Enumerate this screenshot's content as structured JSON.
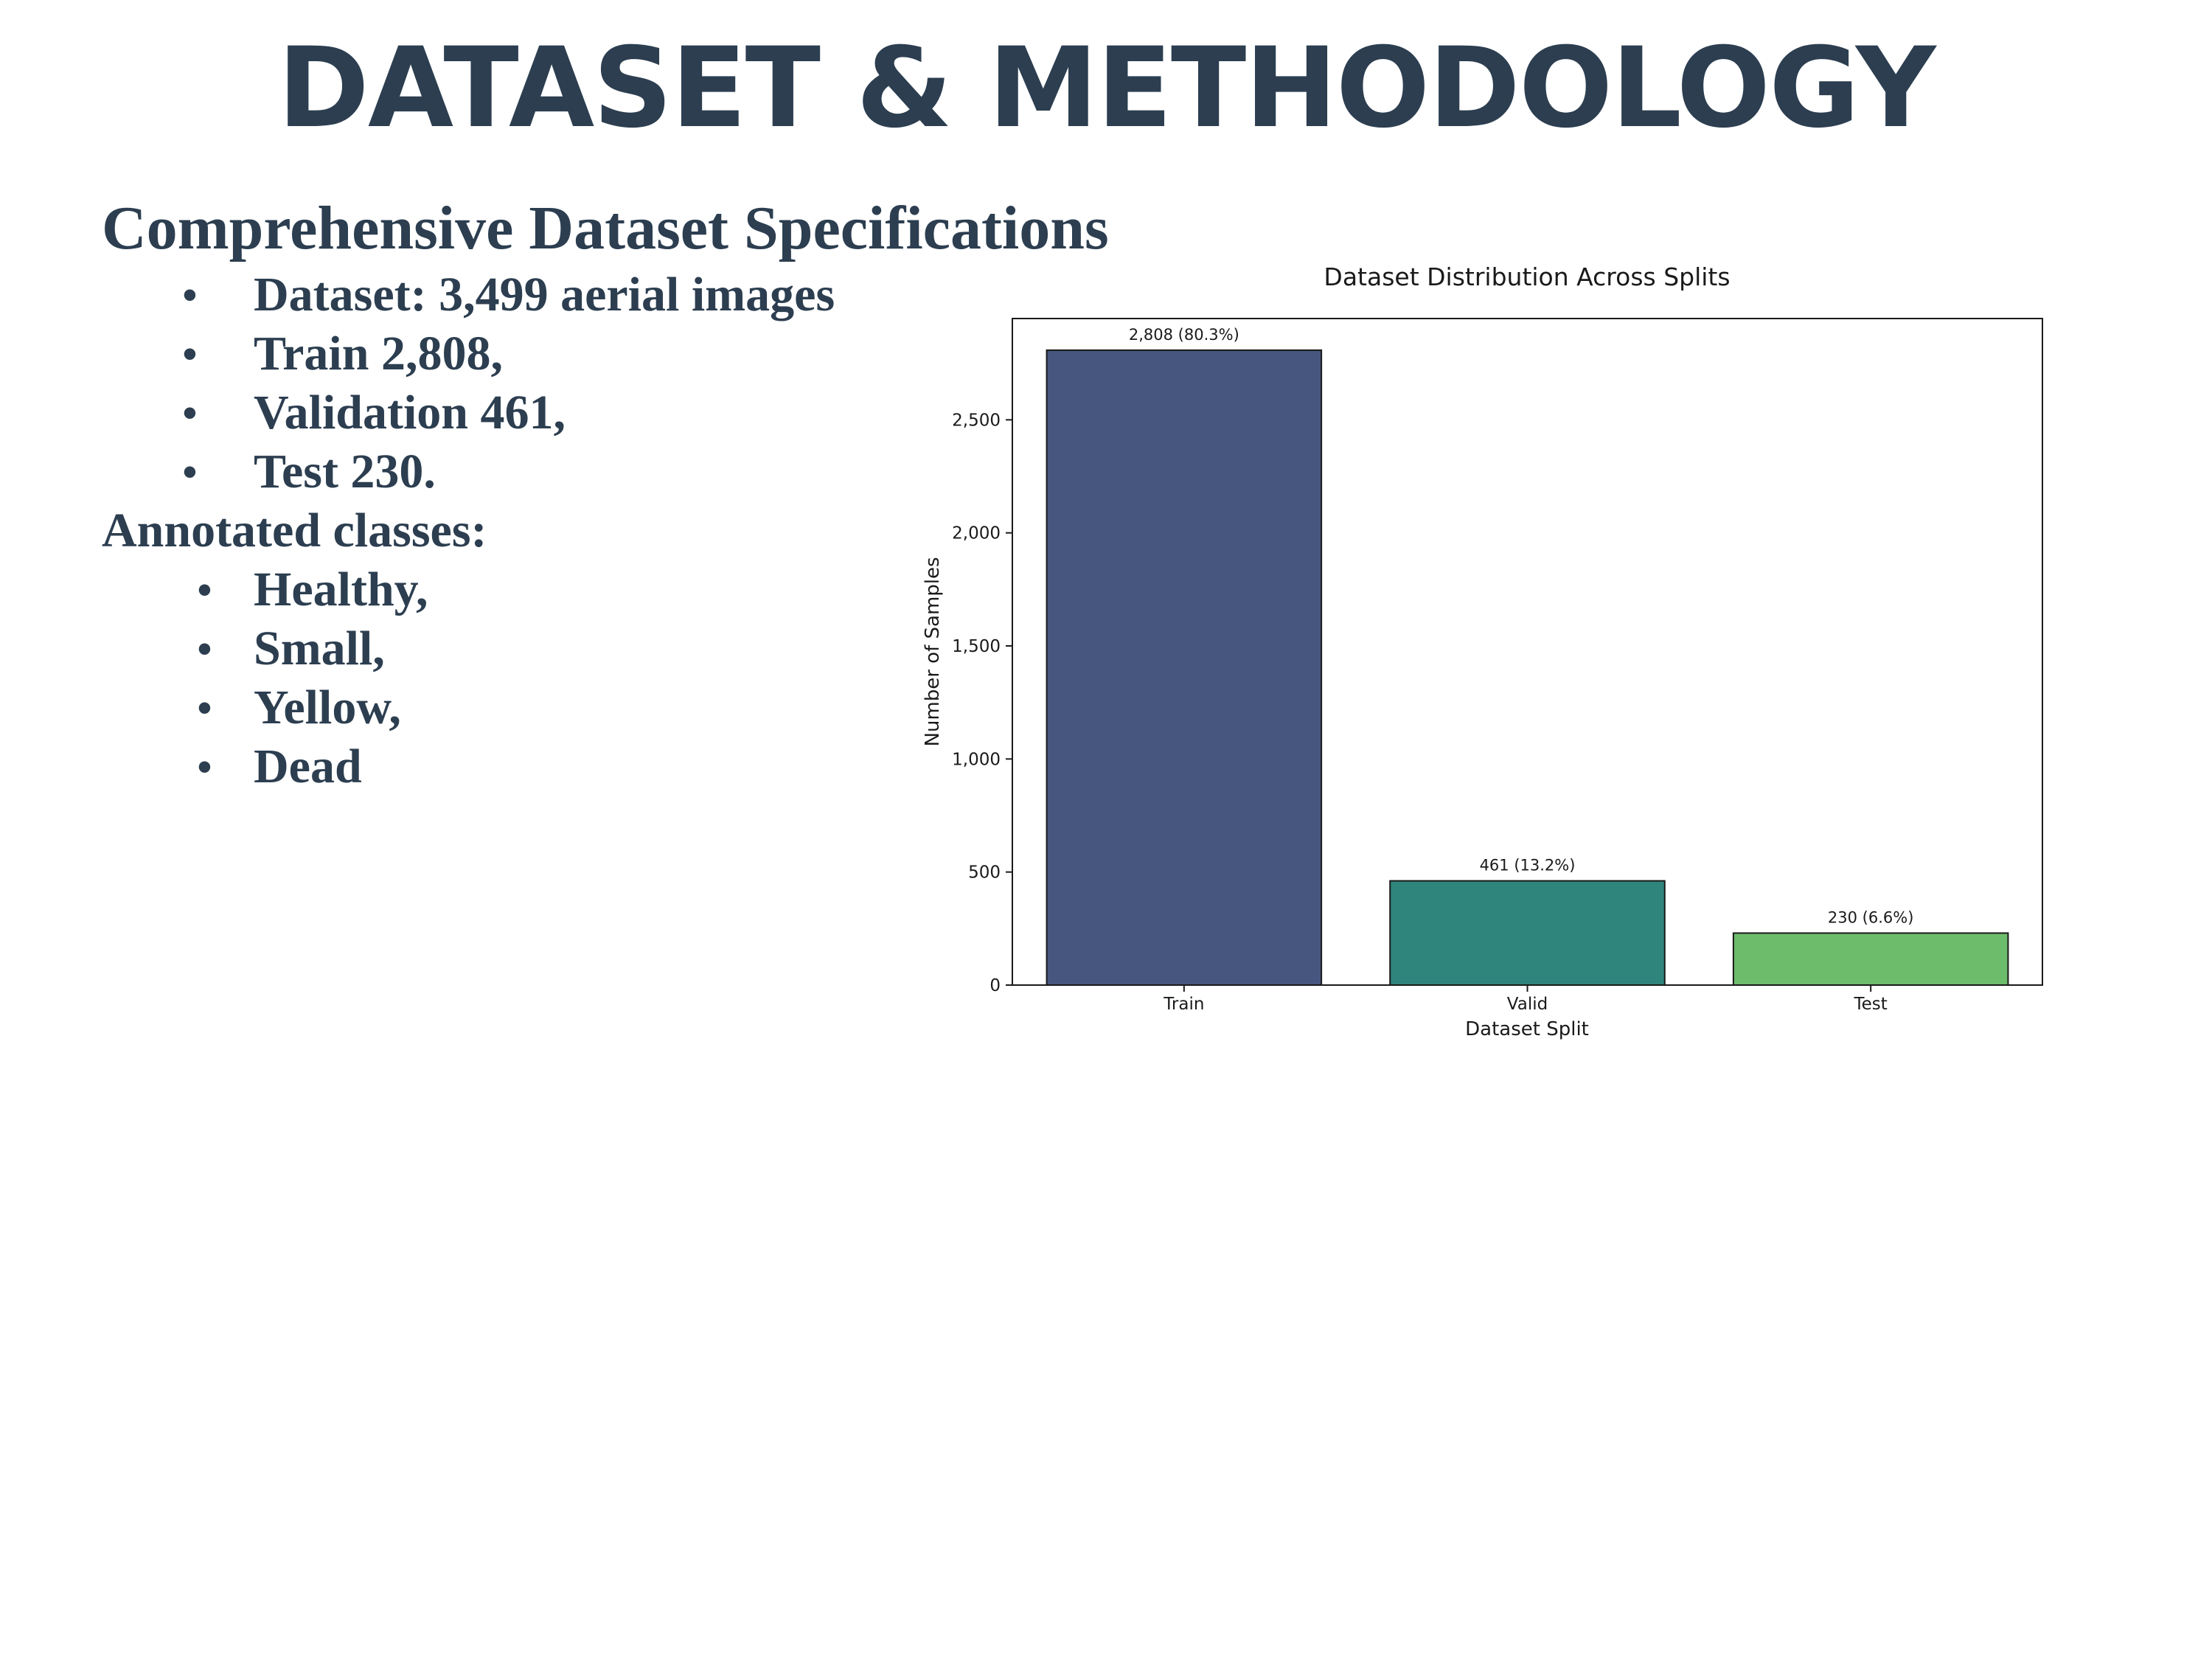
{
  "slide": {
    "title": "DATASET & METHODOLOGY",
    "heading": "Comprehensive Dataset Specifications",
    "spec_items": [
      {
        "bullet": "•",
        "text": "Dataset: 3,499 aerial images"
      },
      {
        "bullet": "•",
        "text": "Train  2,808,"
      },
      {
        "bullet": "•",
        "text": "Validation 461,"
      },
      {
        "bullet": "•",
        "text": "Test 230."
      }
    ],
    "classes_heading": "Annotated classes:",
    "class_items": [
      {
        "bullet": "•",
        "text": "Healthy,"
      },
      {
        "bullet": "•",
        "text": "Small,"
      },
      {
        "bullet": "•",
        "text": "Yellow,"
      },
      {
        "bullet": "•",
        "text": "Dead"
      }
    ]
  },
  "colors": {
    "text": "#2c3e50",
    "bar_train": "#46567e",
    "bar_valid": "#2f857c",
    "bar_test": "#6dbc6b"
  },
  "chart_data": {
    "type": "bar",
    "title": "Dataset Distribution Across Splits",
    "xlabel": "Dataset Split",
    "ylabel": "Number of Samples",
    "categories": [
      "Train",
      "Valid",
      "Test"
    ],
    "values": [
      2808,
      461,
      230
    ],
    "value_labels": [
      "2,808 (80.3%)",
      "461 (13.2%)",
      "230 (6.6%)"
    ],
    "bar_colors": [
      "#46567e",
      "#2f857c",
      "#6dbc6b"
    ],
    "ylim": [
      0,
      2948
    ],
    "yticks": [
      0,
      500,
      1000,
      1500,
      2000,
      2500
    ],
    "ytick_labels": [
      "0",
      "500",
      "1,000",
      "1,500",
      "2,000",
      "2,500"
    ],
    "grid": false,
    "legend": "none"
  }
}
